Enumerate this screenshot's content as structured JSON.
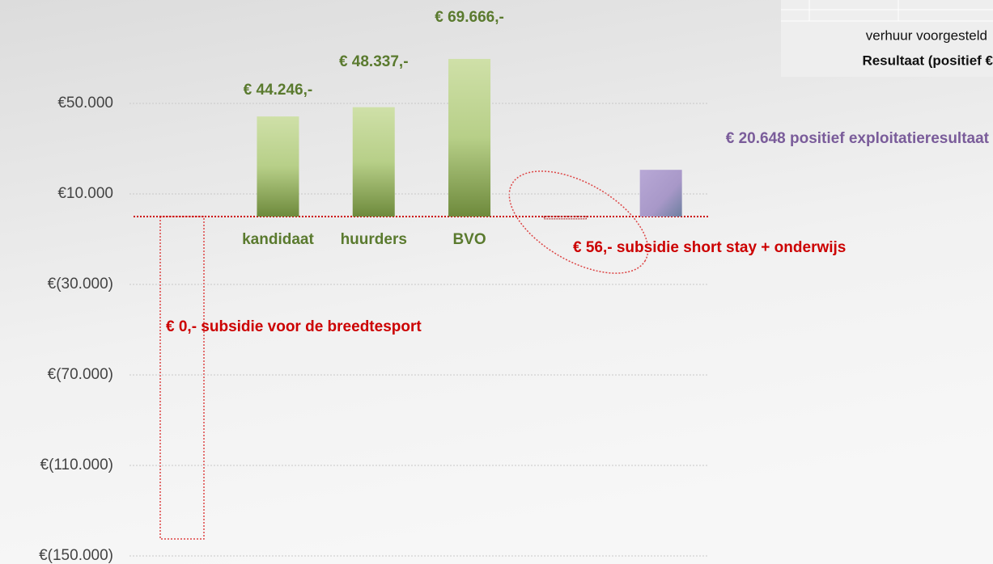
{
  "chart_data": {
    "type": "bar",
    "categories": [
      null,
      "kandidaat",
      "huurders",
      "BVO",
      null,
      null
    ],
    "values": [
      0,
      44246,
      48337,
      69666,
      56,
      20648
    ],
    "value_labels": [
      "€ 0,- subsidie voor de breedtesport",
      "€ 44.246,-",
      "€ 48.337,-",
      "€ 69.666,-",
      "€ 56,- subsidie short stay + onderwijs",
      "€ 20.648 positief exploitatieresultaat"
    ],
    "colors": [
      "#cc0000",
      "#8aa85a",
      "#8aa85a",
      "#8aa85a",
      "#aa1111",
      "#a898c8"
    ],
    "label_colors": [
      "#cc0000",
      "#5a7a2e",
      "#5a7a2e",
      "#5a7a2e",
      "#cc0000",
      "#7a5c9a"
    ],
    "legend": [
      "verhuur voorgesteld",
      "Resultaat (positief €"
    ],
    "ylim": [
      -150000,
      95000
    ],
    "yticks": [
      {
        "value": 50000,
        "label": "€50.000"
      },
      {
        "value": 10000,
        "label": "€10.000"
      },
      {
        "value": -30000,
        "label": "€(30.000)"
      },
      {
        "value": -70000,
        "label": "€(70.000)"
      },
      {
        "value": -110000,
        "label": "€(110.000)"
      },
      {
        "value": -150000,
        "label": "€(150.000)"
      }
    ],
    "grid": true
  }
}
